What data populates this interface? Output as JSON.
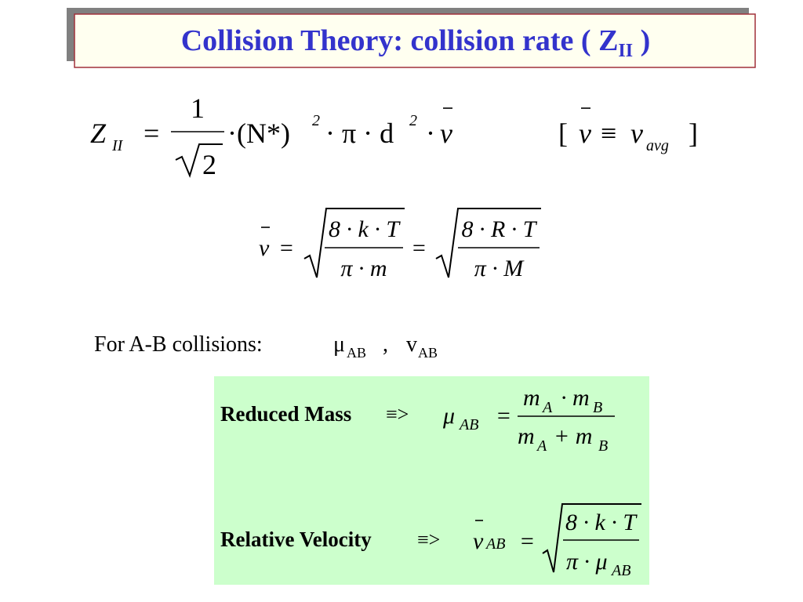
{
  "title": {
    "text": "Collision Theory:  collision rate ( Z",
    "subscript": "II",
    "close": " )"
  },
  "z_equation": {
    "lhs": "Z",
    "lhs_sub": "II",
    "equals": "=",
    "numerator": "1",
    "root": "2",
    "factor": "·(N*)",
    "exp1": "2",
    "middle": "· π · d",
    "exp2": "2",
    "dot": "·",
    "v": "v",
    "definition": {
      "open": "[",
      "v": "v",
      "equiv": "≡",
      "v2": "v",
      "sub": "avg",
      "close": "]"
    }
  },
  "speed_equation": {
    "v": "v",
    "eq1": "=",
    "num1": "8 · k · T",
    "den1": "π · m",
    "eq2": "=",
    "num2": "8 · R · T",
    "den2": "π · M"
  },
  "ab_line": {
    "label": "For A-B collisions:",
    "mu": "μ",
    "mu_sub": "AB",
    "comma": ",",
    "v": "v",
    "v_sub": "AB"
  },
  "box": {
    "reduced": {
      "label": "Reduced Mass",
      "arrow": "≡>",
      "mu": "μ",
      "mu_sub": "AB",
      "equals": "=",
      "num_m1": "m",
      "num_s1": "A",
      "num_m2": "· m",
      "num_s2": "B",
      "den_m1": "m",
      "den_s1": "A",
      "den_m2": "+ m",
      "den_s2": "B"
    },
    "relative": {
      "label": "Relative Velocity",
      "arrow": "≡>",
      "v": "v",
      "v_sub": "AB",
      "equals": "=",
      "num": "8 · k · T",
      "den": "π · μ",
      "den_sub": "AB"
    }
  }
}
